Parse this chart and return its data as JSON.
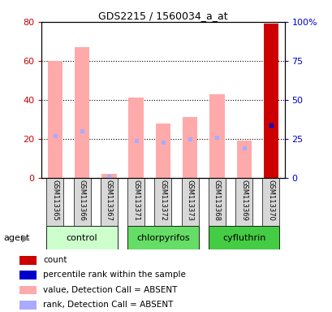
{
  "title": "GDS2215 / 1560034_a_at",
  "samples": [
    "GSM113365",
    "GSM113366",
    "GSM113367",
    "GSM113371",
    "GSM113372",
    "GSM113373",
    "GSM113368",
    "GSM113369",
    "GSM113370"
  ],
  "groups": [
    {
      "label": "control",
      "indices": [
        0,
        1,
        2
      ]
    },
    {
      "label": "chlorpyrifos",
      "indices": [
        3,
        4,
        5
      ]
    },
    {
      "label": "cyfluthrin",
      "indices": [
        6,
        7,
        8
      ]
    }
  ],
  "group_colors": [
    "#ccffcc",
    "#66dd66",
    "#44cc44"
  ],
  "value_absent": [
    60,
    67,
    2,
    41,
    28,
    31,
    43,
    19,
    79
  ],
  "rank_absent": [
    27,
    30,
    1,
    24,
    23,
    25,
    26,
    19,
    34
  ],
  "is_present": [
    false,
    false,
    false,
    false,
    false,
    false,
    false,
    false,
    true
  ],
  "bar_color_absent": "#ffaaaa",
  "bar_color_present": "#cc0000",
  "rank_color_absent": "#aaaaff",
  "rank_color_present": "#0000cc",
  "ylim": [
    0,
    80
  ],
  "y2lim": [
    0,
    100
  ],
  "yticks": [
    0,
    20,
    40,
    60,
    80
  ],
  "y2ticks": [
    0,
    25,
    50,
    75,
    100
  ],
  "ylabel_color": "#cc0000",
  "y2label_color": "#0000cc",
  "bar_width": 0.55,
  "legend_items": [
    {
      "color": "#cc0000",
      "label": "count"
    },
    {
      "color": "#0000cc",
      "label": "percentile rank within the sample"
    },
    {
      "color": "#ffaaaa",
      "label": "value, Detection Call = ABSENT"
    },
    {
      "color": "#aaaaff",
      "label": "rank, Detection Call = ABSENT"
    }
  ]
}
